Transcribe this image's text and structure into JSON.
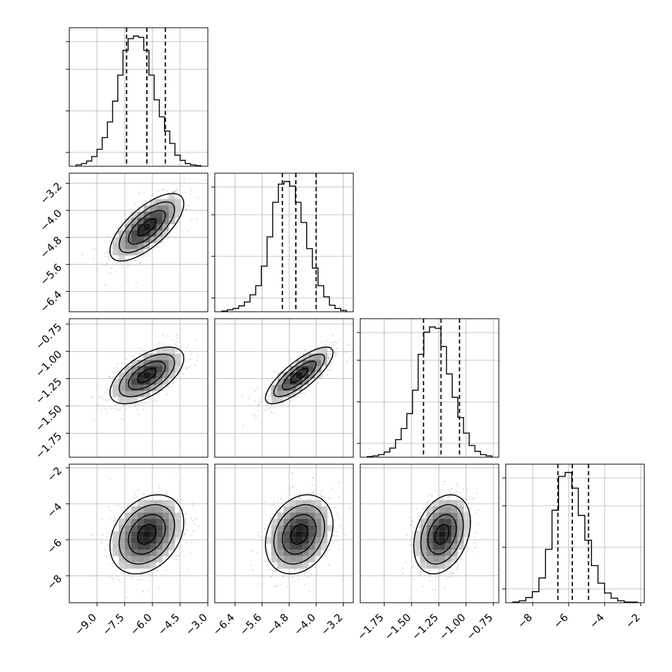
{
  "chart_data": {
    "type": "corner",
    "parameters": [
      {
        "quantiles": [
          -7.4,
          -6.3,
          -5.3
        ],
        "range": [
          -10.5,
          -3.0
        ],
        "ticks": [
          "−9.0",
          "−7.5",
          "−6.0",
          "−4.5",
          "−3.0"
        ],
        "tick_values": [
          -9.0,
          -7.5,
          -6.0,
          -4.5,
          -3.0
        ]
      },
      {
        "quantiles": [
          -5.0,
          -4.6,
          -4.0
        ],
        "range": [
          -7.0,
          -2.9
        ],
        "ticks": [
          "−6.4",
          "−5.6",
          "−4.8",
          "−4.0",
          "−3.2"
        ],
        "tick_values": [
          -6.4,
          -5.6,
          -4.8,
          -4.0,
          -3.2
        ]
      },
      {
        "quantiles": [
          -1.39,
          -1.23,
          -1.06
        ],
        "range": [
          -1.97,
          -0.7
        ],
        "ticks": [
          "−1.75",
          "−1.50",
          "−1.25",
          "−1.00",
          "−0.75"
        ],
        "tick_values": [
          -1.75,
          -1.5,
          -1.25,
          -1.0,
          -0.75
        ]
      },
      {
        "quantiles": [
          -6.6,
          -5.8,
          -4.9
        ],
        "range": [
          -9.5,
          -1.8
        ],
        "ticks": [
          "−8",
          "−6",
          "−4",
          "−2"
        ],
        "tick_values": [
          -8,
          -6,
          -4,
          -2
        ]
      }
    ],
    "row_tick_labels": {
      "1": [
        "−3.2",
        "−4.0",
        "−4.8",
        "−5.6",
        "−6.4"
      ],
      "2": [
        "−0.75",
        "−1.00",
        "−1.25",
        "−1.50",
        "−1.75"
      ],
      "3": [
        "−2",
        "−4",
        "−6",
        "−8"
      ]
    },
    "histograms": [
      {
        "counts": [
          2,
          4,
          8,
          15,
          26,
          44,
          68,
          100,
          140,
          178,
          196,
          200,
          198,
          178,
          140,
          102,
          76,
          54,
          35,
          17,
          9,
          4,
          2,
          1
        ]
      },
      {
        "counts": [
          1,
          3,
          5,
          9,
          15,
          26,
          40,
          70,
          115,
          168,
          196,
          200,
          193,
          168,
          137,
          97,
          67,
          40,
          23,
          10,
          5,
          2
        ]
      },
      {
        "counts": [
          1,
          2,
          4,
          8,
          14,
          27,
          44,
          67,
          103,
          158,
          192,
          200,
          198,
          170,
          128,
          92,
          61,
          37,
          18,
          9,
          4,
          2
        ]
      },
      {
        "counts": [
          1,
          3,
          8,
          17,
          38,
          82,
          142,
          194,
          200,
          176,
          134,
          96,
          57,
          30,
          15,
          7,
          3,
          1,
          1
        ]
      }
    ],
    "pairs": [
      {
        "x": 0,
        "y": 1,
        "mean": [
          -6.3,
          -4.5
        ],
        "sd": [
          1.0,
          0.5
        ],
        "corr": 0.7
      },
      {
        "x": 0,
        "y": 2,
        "mean": [
          -6.3,
          -1.22
        ],
        "sd": [
          1.0,
          0.13
        ],
        "corr": 0.6
      },
      {
        "x": 1,
        "y": 2,
        "mean": [
          -4.5,
          -1.22
        ],
        "sd": [
          0.5,
          0.13
        ],
        "corr": 0.8
      },
      {
        "x": 0,
        "y": 3,
        "mean": [
          -6.3,
          -5.7
        ],
        "sd": [
          1.0,
          1.1
        ],
        "corr": 0.3
      },
      {
        "x": 1,
        "y": 3,
        "mean": [
          -4.5,
          -5.7
        ],
        "sd": [
          0.5,
          1.1
        ],
        "corr": 0.25
      },
      {
        "x": 2,
        "y": 3,
        "mean": [
          -1.22,
          -5.7
        ],
        "sd": [
          0.13,
          1.1
        ],
        "corr": 0.3
      }
    ],
    "contour_levels": [
      0.5,
      1.0,
      1.5,
      2.0
    ],
    "grid": true
  }
}
